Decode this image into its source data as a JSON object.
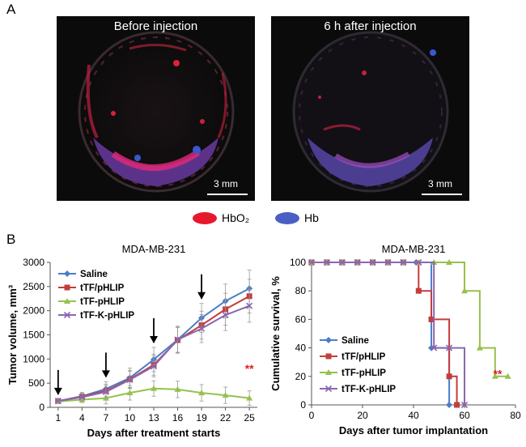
{
  "panel_a": {
    "letter": "A",
    "images": [
      {
        "title": "Before injection",
        "scale_label": "3 mm"
      },
      {
        "title": "6 h after injection",
        "scale_label": "3 mm"
      }
    ],
    "legend": [
      {
        "label": "HbO₂",
        "color": "#e8182c"
      },
      {
        "label": "Hb",
        "color": "#4a5fc4"
      }
    ]
  },
  "panel_b": {
    "letter": "B"
  },
  "chart_data": [
    {
      "type": "line",
      "title": "MDA-MB-231",
      "xlabel": "Days after treatment starts",
      "ylabel": "Tumor volume, mm³",
      "x": [
        1,
        4,
        7,
        10,
        13,
        16,
        19,
        22,
        25
      ],
      "x_ticks": [
        "1",
        "4",
        "7",
        "10",
        "13",
        "16",
        "19",
        "22",
        "25"
      ],
      "y_ticks": [
        "0",
        "500",
        "1000",
        "1500",
        "2000",
        "2500",
        "3000"
      ],
      "xlim": [
        0,
        26
      ],
      "ylim": [
        0,
        3000
      ],
      "series": [
        {
          "name": "Saline",
          "color": "#4a7ec6",
          "marker": "diamond",
          "values": [
            130,
            230,
            380,
            610,
            990,
            1400,
            1850,
            2200,
            2460
          ],
          "errors": [
            40,
            80,
            150,
            200,
            250,
            280,
            300,
            350,
            380
          ]
        },
        {
          "name": "tTF/pHLIP",
          "color": "#c43c3c",
          "marker": "square",
          "values": [
            130,
            220,
            340,
            580,
            880,
            1390,
            1700,
            2030,
            2300
          ],
          "errors": [
            40,
            70,
            140,
            180,
            220,
            260,
            290,
            330,
            350
          ]
        },
        {
          "name": "tTF-pHLIP",
          "color": "#96c14c",
          "marker": "triangle",
          "values": [
            120,
            160,
            190,
            300,
            390,
            370,
            300,
            250,
            190
          ],
          "errors": [
            40,
            60,
            120,
            150,
            160,
            170,
            170,
            170,
            150
          ]
        },
        {
          "name": "tTF-K-pHLIP",
          "color": "#8a67b0",
          "marker": "x",
          "values": [
            130,
            210,
            320,
            570,
            850,
            1400,
            1630,
            1910,
            2100
          ],
          "errors": [
            40,
            70,
            130,
            180,
            220,
            260,
            290,
            320,
            340
          ]
        }
      ],
      "arrows_at_x": [
        1,
        7,
        13,
        19
      ],
      "annotation": {
        "text": "**",
        "x": 25,
        "y": 720,
        "color": "#e02020"
      }
    },
    {
      "type": "line",
      "title": "MDA-MB-231",
      "xlabel": "Days after tumor implantation",
      "ylabel": "Cumulative survival, %",
      "x_ticks": [
        "0",
        "20",
        "40",
        "60",
        "80"
      ],
      "y_ticks": [
        "0",
        "20",
        "40",
        "60",
        "80",
        "100"
      ],
      "xlim": [
        0,
        80
      ],
      "ylim": [
        0,
        100
      ],
      "series": [
        {
          "name": "Saline",
          "color": "#4a7ec6",
          "marker": "diamond",
          "x": [
            0,
            47,
            47,
            54,
            54
          ],
          "values": [
            100,
            100,
            40,
            40,
            0
          ],
          "marker_x": [
            0,
            6,
            12,
            18,
            24,
            30,
            36,
            41,
            47,
            54
          ]
        },
        {
          "name": "tTF/pHLIP",
          "color": "#c43c3c",
          "marker": "square",
          "x": [
            0,
            42,
            42,
            47,
            47,
            54,
            54,
            57,
            57
          ],
          "values": [
            100,
            100,
            80,
            80,
            60,
            60,
            20,
            20,
            0
          ],
          "marker_x": [
            0,
            6,
            12,
            18,
            24,
            30,
            36,
            42,
            47,
            54,
            57
          ]
        },
        {
          "name": "tTF-pHLIP",
          "color": "#96c14c",
          "marker": "triangle",
          "x": [
            0,
            60,
            60,
            66,
            66,
            72,
            72,
            77
          ],
          "values": [
            100,
            100,
            80,
            80,
            40,
            40,
            20,
            20
          ],
          "marker_x": [
            0,
            6,
            12,
            18,
            24,
            30,
            36,
            42,
            48,
            54,
            60,
            66,
            72,
            77
          ]
        },
        {
          "name": "tTF-K-pHLIP",
          "color": "#8a67b0",
          "marker": "x",
          "x": [
            0,
            48,
            48,
            60,
            60
          ],
          "values": [
            100,
            100,
            40,
            40,
            0
          ],
          "marker_x": [
            0,
            6,
            12,
            18,
            24,
            30,
            36,
            42,
            48,
            54,
            60
          ]
        }
      ],
      "annotation": {
        "text": "**",
        "x": 73,
        "y": 19,
        "color": "#e02020"
      }
    }
  ]
}
